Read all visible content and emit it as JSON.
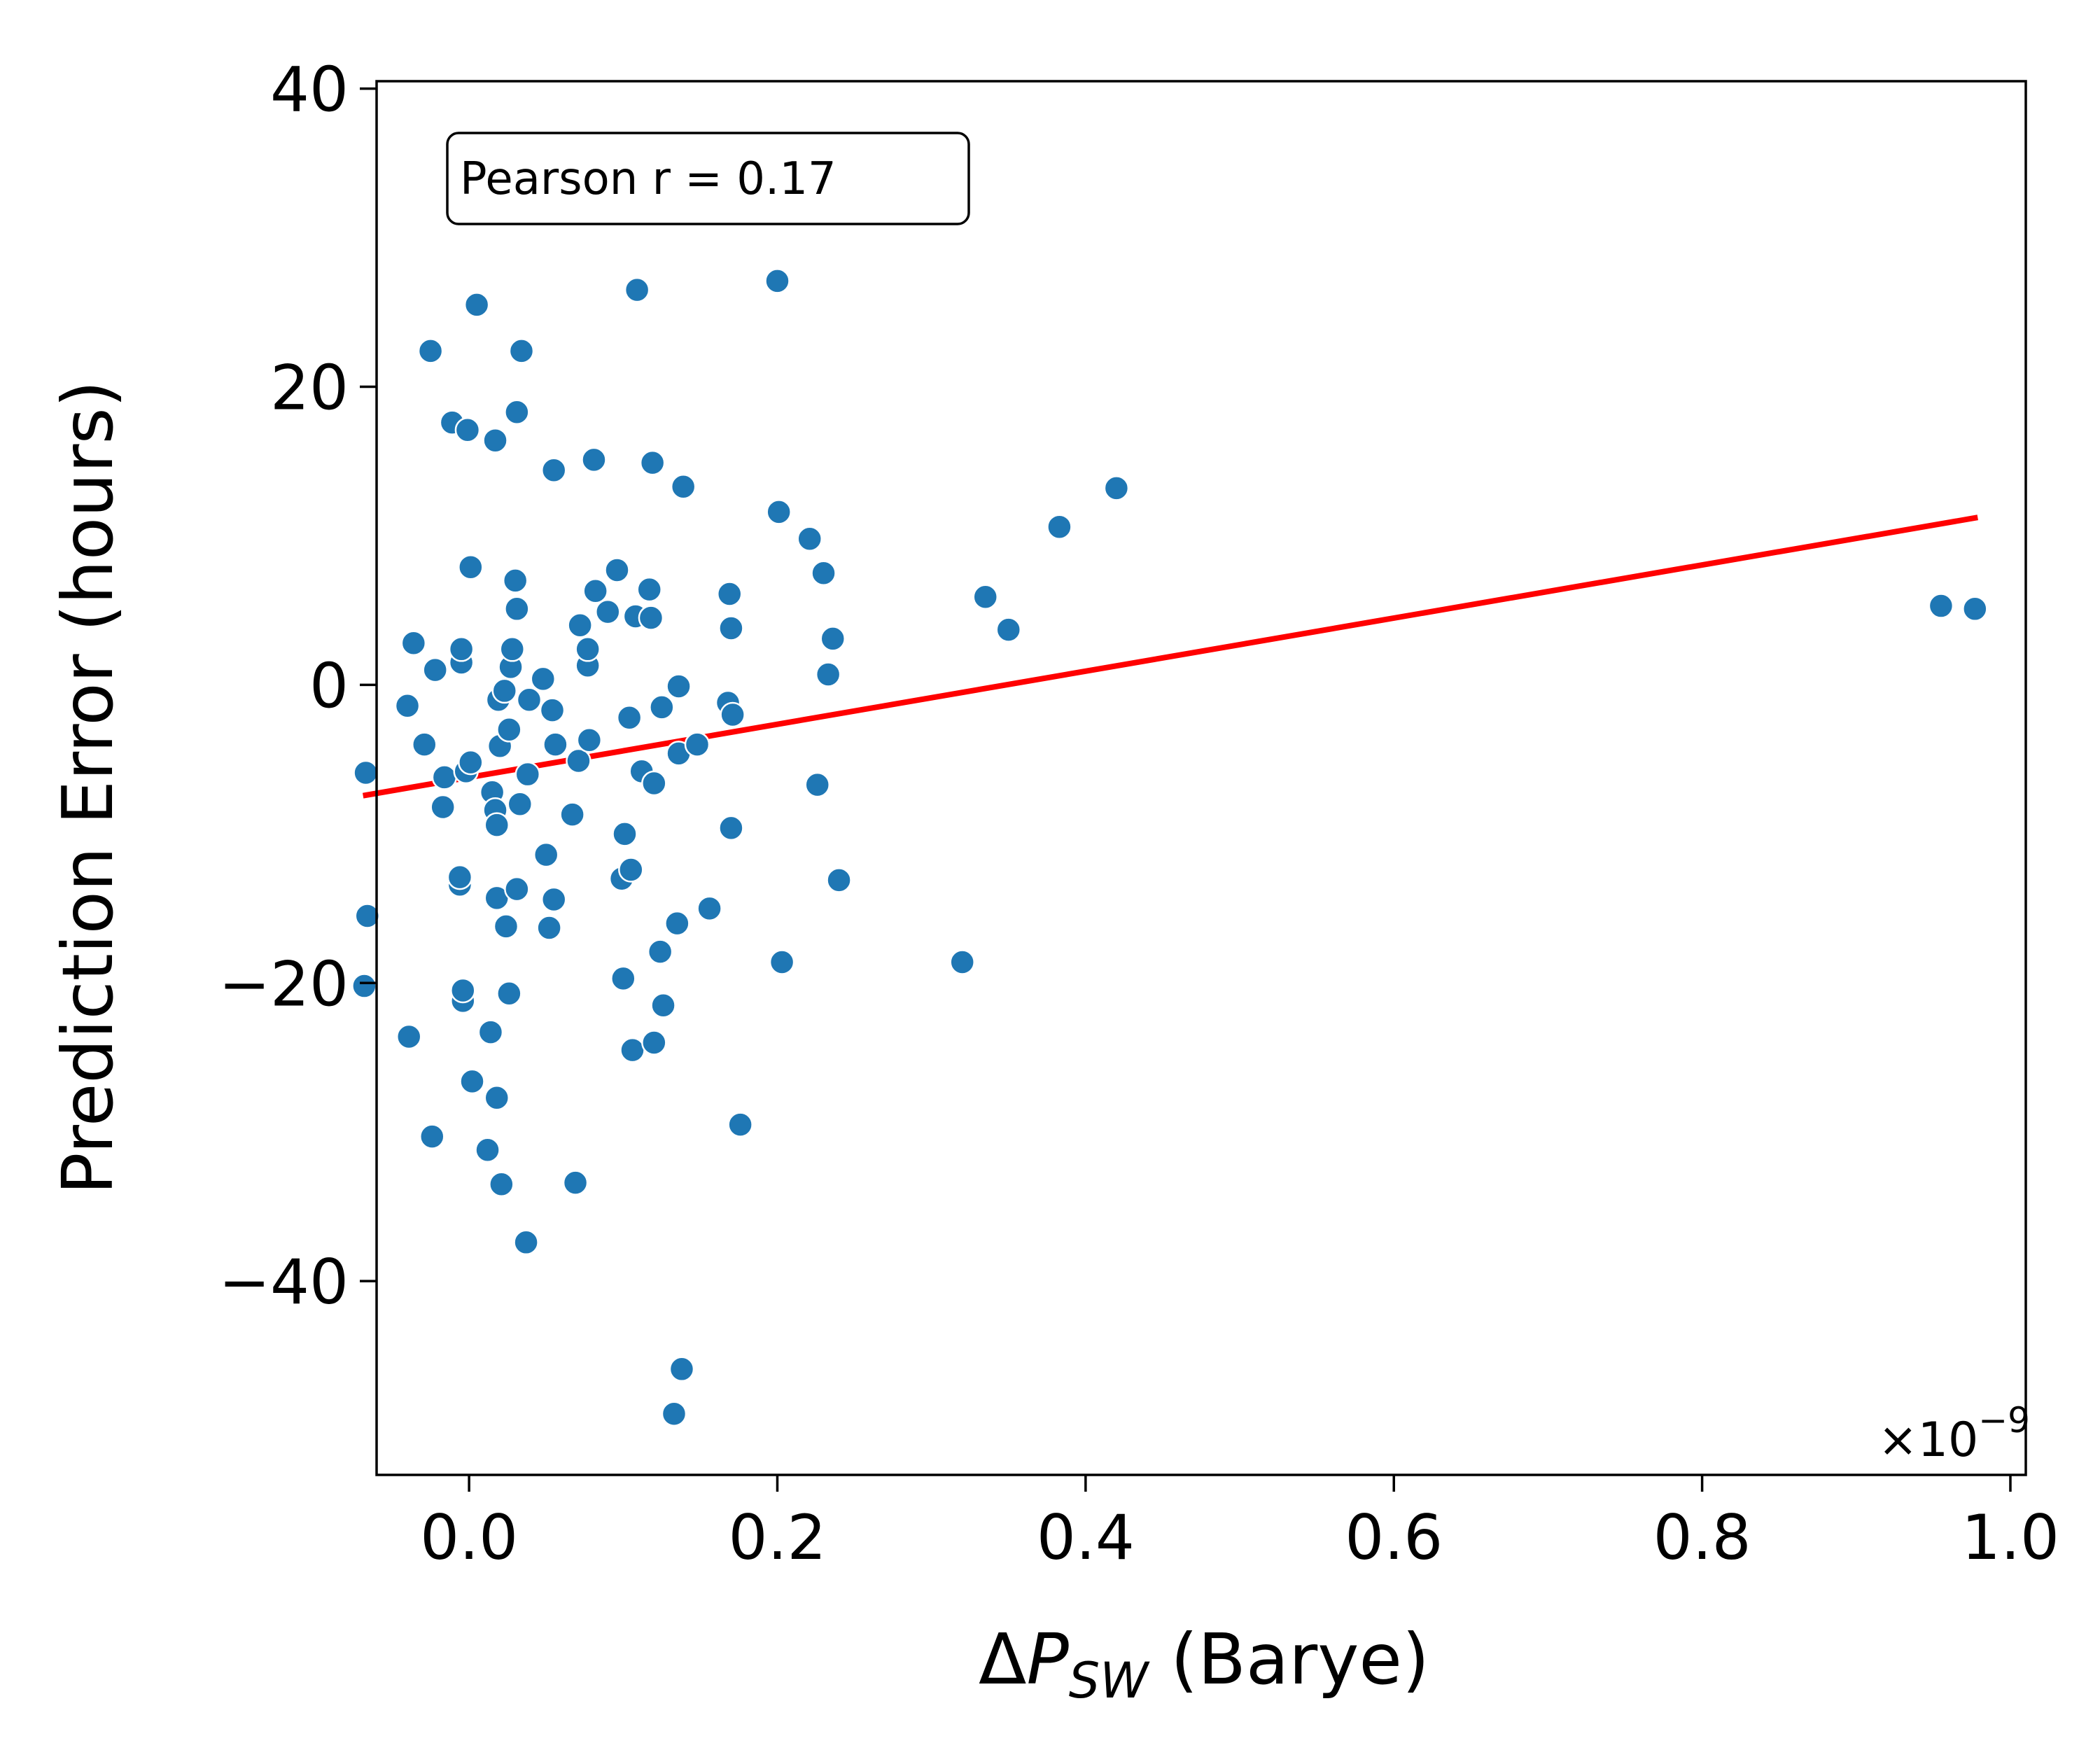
{
  "chart_data": {
    "type": "scatter",
    "title": "",
    "xlabel": {
      "prefix": "Δ",
      "var": "P",
      "sub": "SW",
      "suffix": " (Barye)"
    },
    "ylabel": "Prediction Error (hours)",
    "x_offset_label": {
      "base": "×10",
      "exp": "−9"
    },
    "x_scale": 1e-09,
    "xlim": [
      -0.06,
      1.01
    ],
    "ylim": [
      -53,
      40.5
    ],
    "x_ticks": [
      0.0,
      0.2,
      0.4,
      0.6,
      0.8,
      1.0
    ],
    "x_tick_labels": [
      "0.0",
      "0.2",
      "0.4",
      "0.6",
      "0.8",
      "1.0"
    ],
    "y_ticks": [
      40,
      20,
      0,
      -20,
      -40
    ],
    "y_tick_labels": [
      "40",
      "20",
      "0",
      "−20",
      "−40"
    ],
    "grid": false,
    "annotation": "Pearson r = 0.17",
    "annotation_position": "top-left",
    "point_color": "#1f77b4",
    "fit_color": "#ff0000",
    "fit_line": {
      "x": [
        -0.067,
        0.977
      ],
      "y": [
        -7.4,
        11.2
      ]
    },
    "points": [
      [
        -0.067,
        -5.9
      ],
      [
        -0.066,
        -15.5
      ],
      [
        -0.068,
        -20.2
      ],
      [
        -0.04,
        -1.4
      ],
      [
        -0.039,
        -23.6
      ],
      [
        -0.036,
        2.8
      ],
      [
        -0.029,
        -4.0
      ],
      [
        -0.025,
        22.4
      ],
      [
        -0.024,
        -30.3
      ],
      [
        -0.022,
        1.0
      ],
      [
        -0.017,
        -8.2
      ],
      [
        -0.016,
        -6.2
      ],
      [
        -0.011,
        17.6
      ],
      [
        -0.006,
        -13.4
      ],
      [
        -0.006,
        -12.9
      ],
      [
        -0.005,
        1.5
      ],
      [
        -0.005,
        2.4
      ],
      [
        -0.004,
        -21.2
      ],
      [
        -0.004,
        -20.5
      ],
      [
        -0.002,
        -5.8
      ],
      [
        -0.001,
        17.1
      ],
      [
        0.001,
        7.9
      ],
      [
        0.001,
        -5.2
      ],
      [
        0.002,
        -26.6
      ],
      [
        0.005,
        25.5
      ],
      [
        0.012,
        -31.2
      ],
      [
        0.014,
        -23.3
      ],
      [
        0.015,
        -7.2
      ],
      [
        0.017,
        16.4
      ],
      [
        0.017,
        -8.4
      ],
      [
        0.018,
        -9.4
      ],
      [
        0.018,
        -14.3
      ],
      [
        0.018,
        -27.7
      ],
      [
        0.019,
        -1.0
      ],
      [
        0.02,
        -4.1
      ],
      [
        0.021,
        -33.5
      ],
      [
        0.023,
        -0.4
      ],
      [
        0.024,
        -16.2
      ],
      [
        0.026,
        -3.0
      ],
      [
        0.026,
        -20.7
      ],
      [
        0.027,
        1.2
      ],
      [
        0.028,
        2.4
      ],
      [
        0.03,
        7.0
      ],
      [
        0.031,
        18.3
      ],
      [
        0.031,
        5.1
      ],
      [
        0.031,
        -13.7
      ],
      [
        0.033,
        -8.0
      ],
      [
        0.034,
        22.4
      ],
      [
        0.037,
        -37.4
      ],
      [
        0.038,
        -6.0
      ],
      [
        0.039,
        -1.0
      ],
      [
        0.048,
        0.4
      ],
      [
        0.05,
        -11.4
      ],
      [
        0.052,
        -16.3
      ],
      [
        0.054,
        -1.7
      ],
      [
        0.055,
        14.4
      ],
      [
        0.055,
        -14.4
      ],
      [
        0.056,
        -4.0
      ],
      [
        0.067,
        -8.7
      ],
      [
        0.069,
        -33.4
      ],
      [
        0.071,
        -5.1
      ],
      [
        0.072,
        4.0
      ],
      [
        0.077,
        1.3
      ],
      [
        0.077,
        2.4
      ],
      [
        0.078,
        -3.7
      ],
      [
        0.081,
        15.1
      ],
      [
        0.082,
        6.3
      ],
      [
        0.09,
        4.9
      ],
      [
        0.096,
        7.7
      ],
      [
        0.099,
        -13.0
      ],
      [
        0.1,
        -19.7
      ],
      [
        0.101,
        -10.0
      ],
      [
        0.104,
        -2.2
      ],
      [
        0.105,
        -12.4
      ],
      [
        0.106,
        -24.5
      ],
      [
        0.108,
        4.6
      ],
      [
        0.109,
        26.5
      ],
      [
        0.112,
        -5.8
      ],
      [
        0.117,
        6.4
      ],
      [
        0.118,
        4.5
      ],
      [
        0.119,
        14.9
      ],
      [
        0.12,
        -6.6
      ],
      [
        0.12,
        -24.0
      ],
      [
        0.124,
        -17.9
      ],
      [
        0.125,
        -1.5
      ],
      [
        0.126,
        -21.5
      ],
      [
        0.133,
        -48.9
      ],
      [
        0.135,
        -16.0
      ],
      [
        0.136,
        -4.6
      ],
      [
        0.136,
        -0.1
      ],
      [
        0.138,
        -45.9
      ],
      [
        0.139,
        13.3
      ],
      [
        0.148,
        -4.0
      ],
      [
        0.156,
        -15.0
      ],
      [
        0.168,
        -1.2
      ],
      [
        0.169,
        6.1
      ],
      [
        0.17,
        3.8
      ],
      [
        0.17,
        -9.6
      ],
      [
        0.171,
        -2.0
      ],
      [
        0.176,
        -29.5
      ],
      [
        0.2,
        27.1
      ],
      [
        0.201,
        11.6
      ],
      [
        0.203,
        -18.6
      ],
      [
        0.221,
        9.8
      ],
      [
        0.226,
        -6.7
      ],
      [
        0.23,
        7.5
      ],
      [
        0.233,
        0.7
      ],
      [
        0.236,
        3.1
      ],
      [
        0.24,
        -13.1
      ],
      [
        0.32,
        -18.6
      ],
      [
        0.335,
        5.9
      ],
      [
        0.35,
        3.7
      ],
      [
        0.383,
        10.6
      ],
      [
        0.42,
        13.2
      ],
      [
        0.955,
        5.3
      ],
      [
        0.977,
        5.1
      ]
    ]
  }
}
